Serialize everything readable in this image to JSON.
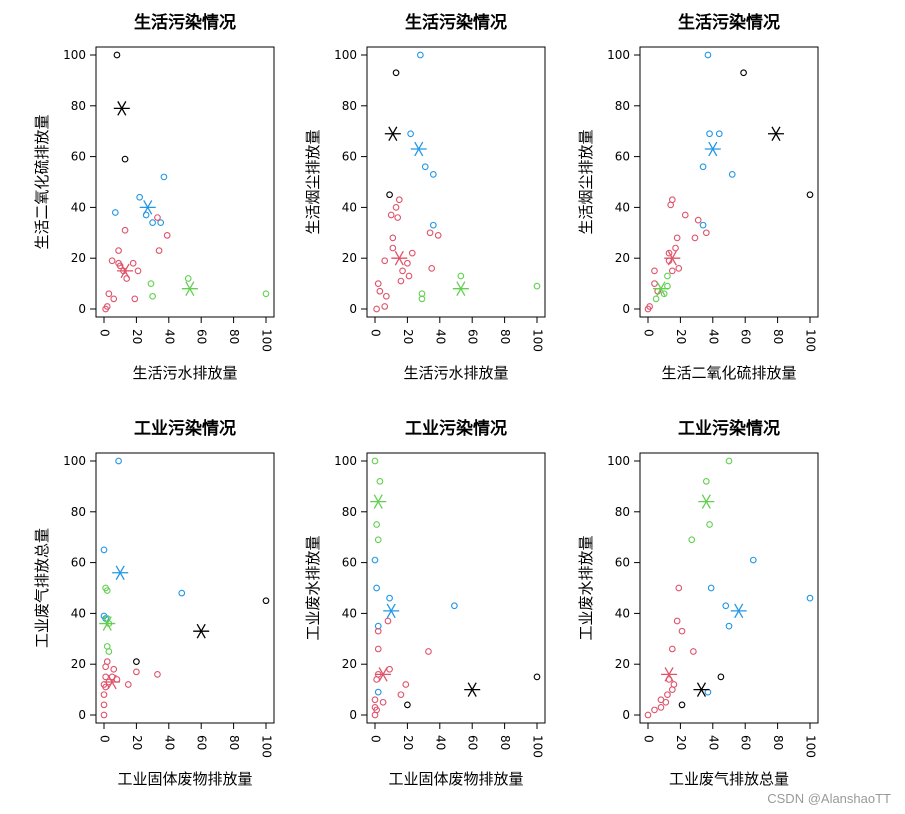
{
  "watermark": "CSDN @AlanshaoTT",
  "colors": {
    "cluster1": "#DF536B",
    "cluster2": "#61D04F",
    "cluster3": "#2297E6",
    "cluster4": "#000000"
  },
  "chart_data": [
    {
      "type": "scatter",
      "title": "生活污染情况",
      "xlabel": "生活污水排放量",
      "ylabel": "生活二氧化硫排放量",
      "xlim": [
        0,
        100
      ],
      "ylim": [
        0,
        100
      ],
      "xticks": [
        0,
        20,
        40,
        60,
        80,
        100
      ],
      "yticks": [
        0,
        20,
        40,
        60,
        80,
        100
      ],
      "points": [
        {
          "x": 8,
          "y": 100,
          "cluster": 4
        },
        {
          "x": 13,
          "y": 59,
          "cluster": 4
        },
        {
          "x": 7,
          "y": 38,
          "cluster": 3
        },
        {
          "x": 22,
          "y": 44,
          "cluster": 3
        },
        {
          "x": 26,
          "y": 37,
          "cluster": 3
        },
        {
          "x": 30,
          "y": 34,
          "cluster": 3
        },
        {
          "x": 35,
          "y": 34,
          "cluster": 3
        },
        {
          "x": 37,
          "y": 52,
          "cluster": 3
        },
        {
          "x": 1,
          "y": 0,
          "cluster": 1
        },
        {
          "x": 2,
          "y": 1,
          "cluster": 1
        },
        {
          "x": 3,
          "y": 6,
          "cluster": 1
        },
        {
          "x": 6,
          "y": 4,
          "cluster": 1
        },
        {
          "x": 5,
          "y": 19,
          "cluster": 1
        },
        {
          "x": 9,
          "y": 23,
          "cluster": 1
        },
        {
          "x": 9,
          "y": 18,
          "cluster": 1
        },
        {
          "x": 10,
          "y": 17,
          "cluster": 1
        },
        {
          "x": 12,
          "y": 15,
          "cluster": 1
        },
        {
          "x": 13,
          "y": 31,
          "cluster": 1
        },
        {
          "x": 14,
          "y": 12,
          "cluster": 1
        },
        {
          "x": 18,
          "y": 18,
          "cluster": 1
        },
        {
          "x": 19,
          "y": 4,
          "cluster": 1
        },
        {
          "x": 21,
          "y": 15,
          "cluster": 1
        },
        {
          "x": 33,
          "y": 36,
          "cluster": 1
        },
        {
          "x": 34,
          "y": 23,
          "cluster": 1
        },
        {
          "x": 39,
          "y": 29,
          "cluster": 1
        },
        {
          "x": 29,
          "y": 10,
          "cluster": 2
        },
        {
          "x": 30,
          "y": 5,
          "cluster": 2
        },
        {
          "x": 52,
          "y": 12,
          "cluster": 2
        },
        {
          "x": 100,
          "y": 6,
          "cluster": 2
        }
      ],
      "centers": [
        {
          "x": 13,
          "y": 15,
          "cluster": 1
        },
        {
          "x": 53,
          "y": 8,
          "cluster": 2
        },
        {
          "x": 27,
          "y": 40,
          "cluster": 3
        },
        {
          "x": 11,
          "y": 79,
          "cluster": 4
        }
      ]
    },
    {
      "type": "scatter",
      "title": "生活污染情况",
      "xlabel": "生活污水排放量",
      "ylabel": "生活烟尘排放量",
      "xlim": [
        0,
        100
      ],
      "ylim": [
        0,
        100
      ],
      "xticks": [
        0,
        20,
        40,
        60,
        80,
        100
      ],
      "yticks": [
        0,
        20,
        40,
        60,
        80,
        100
      ],
      "points": [
        {
          "x": 13,
          "y": 93,
          "cluster": 4
        },
        {
          "x": 9,
          "y": 45,
          "cluster": 4
        },
        {
          "x": 28,
          "y": 100,
          "cluster": 3
        },
        {
          "x": 22,
          "y": 69,
          "cluster": 3
        },
        {
          "x": 31,
          "y": 56,
          "cluster": 3
        },
        {
          "x": 36,
          "y": 53,
          "cluster": 3
        },
        {
          "x": 36,
          "y": 33,
          "cluster": 3
        },
        {
          "x": 1,
          "y": 0,
          "cluster": 1
        },
        {
          "x": 2,
          "y": 10,
          "cluster": 1
        },
        {
          "x": 3,
          "y": 7,
          "cluster": 1
        },
        {
          "x": 6,
          "y": 1,
          "cluster": 1
        },
        {
          "x": 7,
          "y": 5,
          "cluster": 1
        },
        {
          "x": 6,
          "y": 19,
          "cluster": 1
        },
        {
          "x": 10,
          "y": 37,
          "cluster": 1
        },
        {
          "x": 11,
          "y": 28,
          "cluster": 1
        },
        {
          "x": 11,
          "y": 24,
          "cluster": 1
        },
        {
          "x": 13,
          "y": 40,
          "cluster": 1
        },
        {
          "x": 14,
          "y": 36,
          "cluster": 1
        },
        {
          "x": 15,
          "y": 43,
          "cluster": 1
        },
        {
          "x": 16,
          "y": 11,
          "cluster": 1
        },
        {
          "x": 17,
          "y": 15,
          "cluster": 1
        },
        {
          "x": 20,
          "y": 18,
          "cluster": 1
        },
        {
          "x": 21,
          "y": 13,
          "cluster": 1
        },
        {
          "x": 23,
          "y": 22,
          "cluster": 1
        },
        {
          "x": 34,
          "y": 30,
          "cluster": 1
        },
        {
          "x": 35,
          "y": 16,
          "cluster": 1
        },
        {
          "x": 39,
          "y": 29,
          "cluster": 1
        },
        {
          "x": 29,
          "y": 4,
          "cluster": 2
        },
        {
          "x": 29,
          "y": 6,
          "cluster": 2
        },
        {
          "x": 53,
          "y": 13,
          "cluster": 2
        },
        {
          "x": 100,
          "y": 9,
          "cluster": 2
        }
      ],
      "centers": [
        {
          "x": 15,
          "y": 20,
          "cluster": 1
        },
        {
          "x": 53,
          "y": 8,
          "cluster": 2
        },
        {
          "x": 27,
          "y": 63,
          "cluster": 3
        },
        {
          "x": 11,
          "y": 69,
          "cluster": 4
        }
      ]
    },
    {
      "type": "scatter",
      "title": "生活污染情况",
      "xlabel": "生活二氧化硫排放量",
      "ylabel": "生活烟尘排放量",
      "xlim": [
        0,
        100
      ],
      "ylim": [
        0,
        100
      ],
      "xticks": [
        0,
        20,
        40,
        60,
        80,
        100
      ],
      "yticks": [
        0,
        20,
        40,
        60,
        80,
        100
      ],
      "points": [
        {
          "x": 59,
          "y": 93,
          "cluster": 4
        },
        {
          "x": 100,
          "y": 45,
          "cluster": 4
        },
        {
          "x": 37,
          "y": 100,
          "cluster": 3
        },
        {
          "x": 38,
          "y": 69,
          "cluster": 3
        },
        {
          "x": 44,
          "y": 69,
          "cluster": 3
        },
        {
          "x": 34,
          "y": 56,
          "cluster": 3
        },
        {
          "x": 52,
          "y": 53,
          "cluster": 3
        },
        {
          "x": 34,
          "y": 33,
          "cluster": 3
        },
        {
          "x": 0,
          "y": 0,
          "cluster": 1
        },
        {
          "x": 1,
          "y": 1,
          "cluster": 1
        },
        {
          "x": 4,
          "y": 10,
          "cluster": 1
        },
        {
          "x": 4,
          "y": 15,
          "cluster": 1
        },
        {
          "x": 6,
          "y": 7,
          "cluster": 1
        },
        {
          "x": 13,
          "y": 19,
          "cluster": 1
        },
        {
          "x": 13,
          "y": 22,
          "cluster": 1
        },
        {
          "x": 14,
          "y": 41,
          "cluster": 1
        },
        {
          "x": 15,
          "y": 43,
          "cluster": 1
        },
        {
          "x": 15,
          "y": 15,
          "cluster": 1
        },
        {
          "x": 17,
          "y": 24,
          "cluster": 1
        },
        {
          "x": 18,
          "y": 28,
          "cluster": 1
        },
        {
          "x": 19,
          "y": 16,
          "cluster": 1
        },
        {
          "x": 23,
          "y": 37,
          "cluster": 1
        },
        {
          "x": 29,
          "y": 28,
          "cluster": 1
        },
        {
          "x": 31,
          "y": 35,
          "cluster": 1
        },
        {
          "x": 36,
          "y": 30,
          "cluster": 1
        },
        {
          "x": 5,
          "y": 4,
          "cluster": 2
        },
        {
          "x": 10,
          "y": 6,
          "cluster": 2
        },
        {
          "x": 12,
          "y": 13,
          "cluster": 2
        },
        {
          "x": 12,
          "y": 9,
          "cluster": 2
        }
      ],
      "centers": [
        {
          "x": 15,
          "y": 20,
          "cluster": 1
        },
        {
          "x": 8,
          "y": 8,
          "cluster": 2
        },
        {
          "x": 40,
          "y": 63,
          "cluster": 3
        },
        {
          "x": 79,
          "y": 69,
          "cluster": 4
        }
      ]
    },
    {
      "type": "scatter",
      "title": "工业污染情况",
      "xlabel": "工业固体废物排放量",
      "ylabel": "工业废气排放总量",
      "xlim": [
        0,
        100
      ],
      "ylim": [
        0,
        100
      ],
      "xticks": [
        0,
        20,
        40,
        60,
        80,
        100
      ],
      "yticks": [
        0,
        20,
        40,
        60,
        80,
        100
      ],
      "points": [
        {
          "x": 20,
          "y": 21,
          "cluster": 4
        },
        {
          "x": 100,
          "y": 45,
          "cluster": 4
        },
        {
          "x": 9,
          "y": 100,
          "cluster": 3
        },
        {
          "x": 0,
          "y": 65,
          "cluster": 3
        },
        {
          "x": 48,
          "y": 48,
          "cluster": 3
        },
        {
          "x": 0,
          "y": 39,
          "cluster": 3
        },
        {
          "x": 1,
          "y": 38,
          "cluster": 3
        },
        {
          "x": 1,
          "y": 50,
          "cluster": 2
        },
        {
          "x": 2,
          "y": 49,
          "cluster": 2
        },
        {
          "x": 2,
          "y": 38,
          "cluster": 2
        },
        {
          "x": 3,
          "y": 36,
          "cluster": 2
        },
        {
          "x": 2,
          "y": 27,
          "cluster": 2
        },
        {
          "x": 3,
          "y": 25,
          "cluster": 2
        },
        {
          "x": 0,
          "y": 0,
          "cluster": 1
        },
        {
          "x": 0,
          "y": 4,
          "cluster": 1
        },
        {
          "x": 0,
          "y": 8,
          "cluster": 1
        },
        {
          "x": 0,
          "y": 12,
          "cluster": 1
        },
        {
          "x": 1,
          "y": 11,
          "cluster": 1
        },
        {
          "x": 1,
          "y": 15,
          "cluster": 1
        },
        {
          "x": 1,
          "y": 19,
          "cluster": 1
        },
        {
          "x": 2,
          "y": 21,
          "cluster": 1
        },
        {
          "x": 3,
          "y": 13,
          "cluster": 1
        },
        {
          "x": 5,
          "y": 15,
          "cluster": 1
        },
        {
          "x": 6,
          "y": 18,
          "cluster": 1
        },
        {
          "x": 8,
          "y": 14,
          "cluster": 1
        },
        {
          "x": 15,
          "y": 12,
          "cluster": 1
        },
        {
          "x": 20,
          "y": 17,
          "cluster": 1
        },
        {
          "x": 33,
          "y": 16,
          "cluster": 1
        }
      ],
      "centers": [
        {
          "x": 5,
          "y": 13,
          "cluster": 1
        },
        {
          "x": 2,
          "y": 36,
          "cluster": 2
        },
        {
          "x": 10,
          "y": 56,
          "cluster": 3
        },
        {
          "x": 60,
          "y": 33,
          "cluster": 4
        }
      ]
    },
    {
      "type": "scatter",
      "title": "工业污染情况",
      "xlabel": "工业固体废物排放量",
      "ylabel": "工业废水排放量",
      "xlim": [
        0,
        100
      ],
      "ylim": [
        0,
        100
      ],
      "xticks": [
        0,
        20,
        40,
        60,
        80,
        100
      ],
      "yticks": [
        0,
        20,
        40,
        60,
        80,
        100
      ],
      "points": [
        {
          "x": 20,
          "y": 4,
          "cluster": 4
        },
        {
          "x": 100,
          "y": 15,
          "cluster": 4
        },
        {
          "x": 0,
          "y": 61,
          "cluster": 3
        },
        {
          "x": 1,
          "y": 50,
          "cluster": 3
        },
        {
          "x": 9,
          "y": 46,
          "cluster": 3
        },
        {
          "x": 49,
          "y": 43,
          "cluster": 3
        },
        {
          "x": 2,
          "y": 35,
          "cluster": 3
        },
        {
          "x": 2,
          "y": 9,
          "cluster": 3
        },
        {
          "x": 0,
          "y": 100,
          "cluster": 2
        },
        {
          "x": 3,
          "y": 92,
          "cluster": 2
        },
        {
          "x": 1,
          "y": 75,
          "cluster": 2
        },
        {
          "x": 2,
          "y": 69,
          "cluster": 2
        },
        {
          "x": 0,
          "y": 0,
          "cluster": 1
        },
        {
          "x": 0,
          "y": 3,
          "cluster": 1
        },
        {
          "x": 0,
          "y": 6,
          "cluster": 1
        },
        {
          "x": 1,
          "y": 2,
          "cluster": 1
        },
        {
          "x": 1,
          "y": 14,
          "cluster": 1
        },
        {
          "x": 2,
          "y": 16,
          "cluster": 1
        },
        {
          "x": 2,
          "y": 26,
          "cluster": 1
        },
        {
          "x": 2,
          "y": 33,
          "cluster": 1
        },
        {
          "x": 5,
          "y": 5,
          "cluster": 1
        },
        {
          "x": 8,
          "y": 37,
          "cluster": 1
        },
        {
          "x": 9,
          "y": 18,
          "cluster": 1
        },
        {
          "x": 16,
          "y": 8,
          "cluster": 1
        },
        {
          "x": 19,
          "y": 12,
          "cluster": 1
        },
        {
          "x": 33,
          "y": 25,
          "cluster": 1
        }
      ],
      "centers": [
        {
          "x": 5,
          "y": 16,
          "cluster": 1
        },
        {
          "x": 2,
          "y": 84,
          "cluster": 2
        },
        {
          "x": 10,
          "y": 41,
          "cluster": 3
        },
        {
          "x": 60,
          "y": 10,
          "cluster": 4
        }
      ]
    },
    {
      "type": "scatter",
      "title": "工业污染情况",
      "xlabel": "工业废气排放总量",
      "ylabel": "工业废水排放量",
      "xlim": [
        0,
        100
      ],
      "ylim": [
        0,
        100
      ],
      "xticks": [
        0,
        20,
        40,
        60,
        80,
        100
      ],
      "yticks": [
        0,
        20,
        40,
        60,
        80,
        100
      ],
      "points": [
        {
          "x": 21,
          "y": 4,
          "cluster": 4
        },
        {
          "x": 45,
          "y": 15,
          "cluster": 4
        },
        {
          "x": 37,
          "y": 9,
          "cluster": 3
        },
        {
          "x": 39,
          "y": 50,
          "cluster": 3
        },
        {
          "x": 48,
          "y": 43,
          "cluster": 3
        },
        {
          "x": 50,
          "y": 35,
          "cluster": 3
        },
        {
          "x": 65,
          "y": 61,
          "cluster": 3
        },
        {
          "x": 100,
          "y": 46,
          "cluster": 3
        },
        {
          "x": 50,
          "y": 100,
          "cluster": 2
        },
        {
          "x": 36,
          "y": 92,
          "cluster": 2
        },
        {
          "x": 38,
          "y": 75,
          "cluster": 2
        },
        {
          "x": 27,
          "y": 69,
          "cluster": 2
        },
        {
          "x": 0,
          "y": 0,
          "cluster": 1
        },
        {
          "x": 4,
          "y": 2,
          "cluster": 1
        },
        {
          "x": 8,
          "y": 3,
          "cluster": 1
        },
        {
          "x": 8,
          "y": 6,
          "cluster": 1
        },
        {
          "x": 11,
          "y": 5,
          "cluster": 1
        },
        {
          "x": 12,
          "y": 8,
          "cluster": 1
        },
        {
          "x": 13,
          "y": 14,
          "cluster": 1
        },
        {
          "x": 15,
          "y": 26,
          "cluster": 1
        },
        {
          "x": 15,
          "y": 10,
          "cluster": 1
        },
        {
          "x": 16,
          "y": 12,
          "cluster": 1
        },
        {
          "x": 18,
          "y": 37,
          "cluster": 1
        },
        {
          "x": 19,
          "y": 50,
          "cluster": 1
        },
        {
          "x": 21,
          "y": 33,
          "cluster": 1
        },
        {
          "x": 28,
          "y": 25,
          "cluster": 1
        }
      ],
      "centers": [
        {
          "x": 13,
          "y": 16,
          "cluster": 1
        },
        {
          "x": 36,
          "y": 84,
          "cluster": 2
        },
        {
          "x": 56,
          "y": 41,
          "cluster": 3
        },
        {
          "x": 33,
          "y": 10,
          "cluster": 4
        }
      ]
    }
  ]
}
